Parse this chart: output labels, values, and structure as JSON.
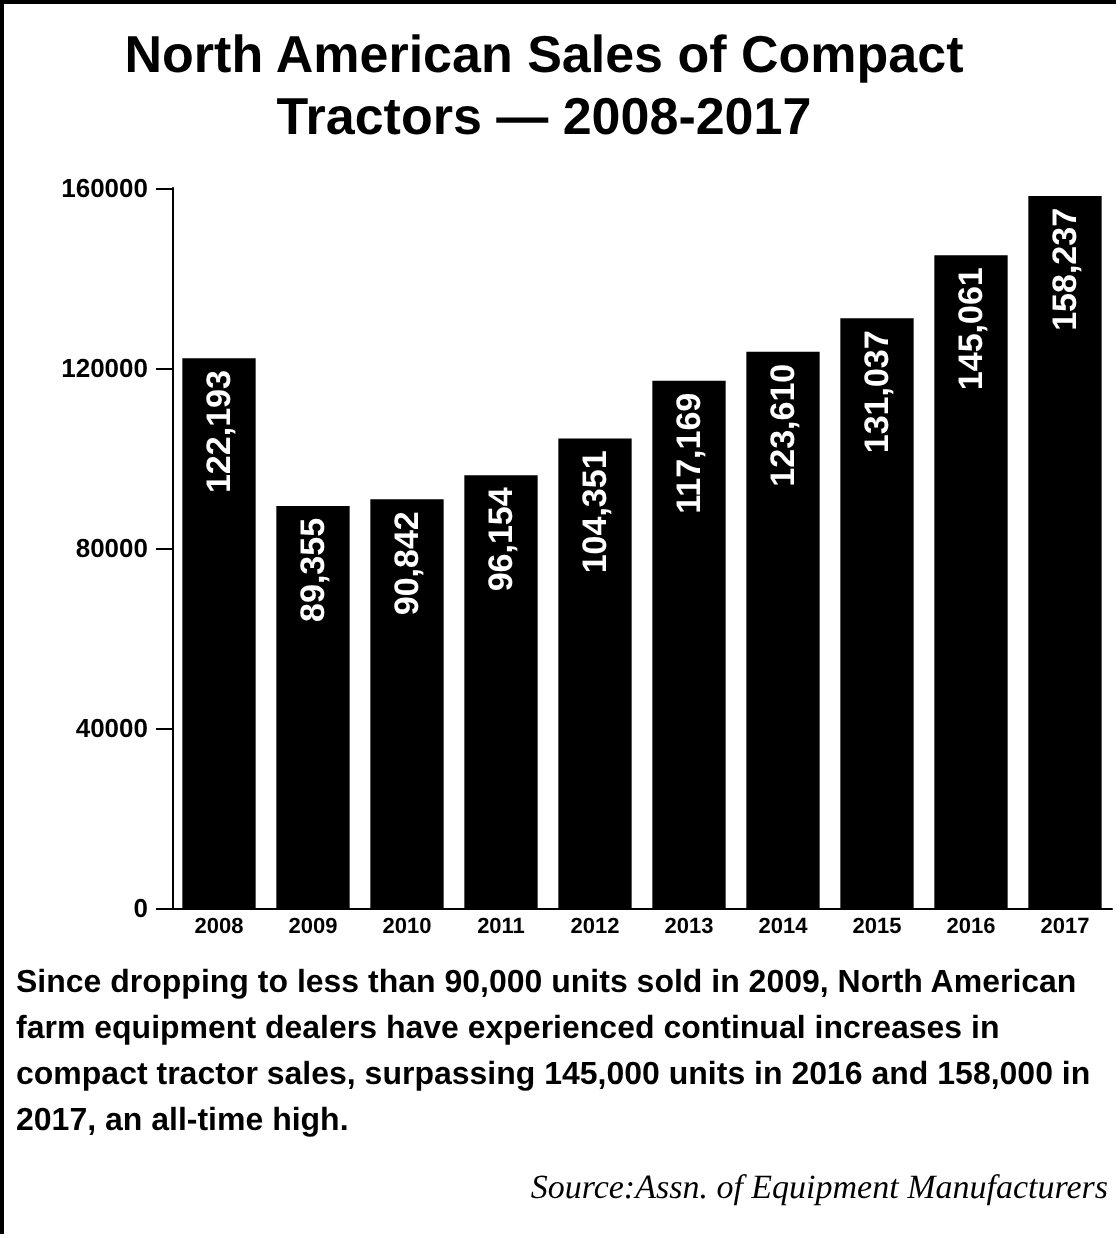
{
  "chart_data": {
    "type": "bar",
    "title": "North American Sales of Compact Tractors — 2008-2017",
    "categories": [
      "2008",
      "2009",
      "2010",
      "2011",
      "2012",
      "2013",
      "2014",
      "2015",
      "2016",
      "2017"
    ],
    "values": [
      122193,
      89355,
      90842,
      96154,
      104351,
      117169,
      123610,
      131037,
      145061,
      158237
    ],
    "value_labels": [
      "122,193",
      "89,355",
      "90,842",
      "96,154",
      "104,351",
      "117,169",
      "123,610",
      "131,037",
      "145,061",
      "158,237"
    ],
    "color": "#000000",
    "ylim": [
      0,
      160000
    ],
    "yticks": [
      0,
      40000,
      80000,
      120000,
      160000
    ],
    "grid": false,
    "annotations": [
      "Since dropping to less than 90,000 units sold in 2009, North American farm equipment dealers have experienced continual increases in compact tractor sales, surpassing 145,000 units in 2016 and 158,000 in 2017, an all-time high.",
      "Source:Assn. of Equipment Manufacturers"
    ]
  }
}
